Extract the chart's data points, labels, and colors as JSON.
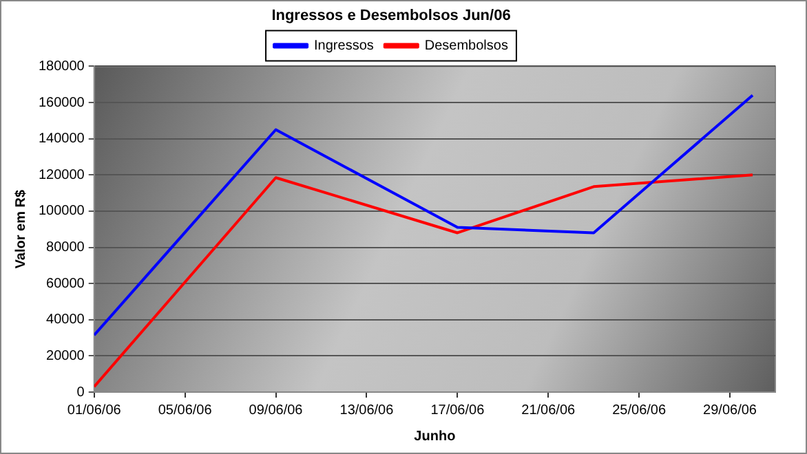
{
  "chart_data": {
    "type": "line",
    "title": "Ingressos e Desembolsos Jun/06",
    "xlabel": "Junho",
    "ylabel": "Valor em R$",
    "x": [
      "--06-01",
      "--06-09",
      "--06-17",
      "--06-23",
      "--06-30"
    ],
    "series": [
      {
        "name": "Ingressos",
        "color": "#0000ff",
        "values": [
          31500,
          145000,
          91000,
          88000,
          164000
        ]
      },
      {
        "name": "Desembolsos",
        "color": "#ff0000",
        "values": [
          3000,
          118500,
          88000,
          113500,
          120000
        ]
      }
    ],
    "xlim": [
      "--06-01",
      "--07-01"
    ],
    "xticks": [
      {
        "value": "--06-01",
        "label": "01/06/06"
      },
      {
        "value": "--06-05",
        "label": "05/06/06"
      },
      {
        "value": "--06-09",
        "label": "09/06/06"
      },
      {
        "value": "--06-13",
        "label": "13/06/06"
      },
      {
        "value": "--06-17",
        "label": "17/06/06"
      },
      {
        "value": "--06-21",
        "label": "21/06/06"
      },
      {
        "value": "--06-25",
        "label": "25/06/06"
      },
      {
        "value": "--06-29",
        "label": "29/06/06"
      }
    ],
    "ylim": [
      0,
      180000
    ],
    "yticks": [
      0,
      20000,
      40000,
      60000,
      80000,
      100000,
      120000,
      140000,
      160000,
      180000
    ],
    "grid": "y",
    "legend": "top",
    "marker": "none",
    "line_style": "solid"
  }
}
